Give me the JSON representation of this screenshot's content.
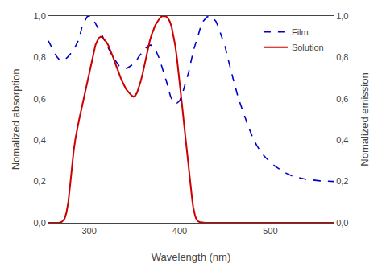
{
  "chart_data": {
    "type": "line",
    "xlabel": "Wavelength (nm)",
    "ylabel": "Nomalized absorption",
    "y2label": "Nomalized emission",
    "xlim": [
      255,
      570
    ],
    "ylim": [
      0.0,
      1.0
    ],
    "y2lim": [
      0.0,
      1.0
    ],
    "xticks": [
      300,
      400,
      500
    ],
    "yticks": [
      {
        "value": 0.0,
        "label": "0,0"
      },
      {
        "value": 0.2,
        "label": "0,2"
      },
      {
        "value": 0.4,
        "label": "0,4"
      },
      {
        "value": 0.6,
        "label": "0,6"
      },
      {
        "value": 0.8,
        "label": "0,8"
      },
      {
        "value": 1.0,
        "label": "1,0"
      }
    ],
    "y2ticks": [
      {
        "value": 0.0,
        "label": "0,0"
      },
      {
        "value": 0.2,
        "label": "0,2"
      },
      {
        "value": 0.4,
        "label": "0,4"
      },
      {
        "value": 0.6,
        "label": "0,6"
      },
      {
        "value": 0.8,
        "label": "0,8"
      },
      {
        "value": 1.0,
        "label": "1,0"
      }
    ],
    "grid": false,
    "legend": "upper right",
    "series": [
      {
        "name": "Film",
        "color": "#0000cc",
        "line_style": "dashed",
        "x": [
          255,
          258,
          261,
          264,
          267,
          270,
          273,
          276,
          279,
          282,
          285,
          288,
          290,
          292,
          295,
          298,
          300,
          302,
          305,
          307,
          310,
          312,
          315,
          318,
          320,
          323,
          325,
          328,
          330,
          333,
          335,
          338,
          340,
          342,
          345,
          348,
          350,
          353,
          355,
          358,
          360,
          363,
          365,
          368,
          370,
          373,
          375,
          378,
          380,
          383,
          386,
          388,
          390,
          393,
          396,
          400,
          403,
          406,
          410,
          413,
          416,
          420,
          423,
          426,
          430,
          433,
          436,
          440,
          443,
          446,
          450,
          453,
          456,
          460,
          465,
          470,
          475,
          480,
          485,
          490,
          495,
          500,
          505,
          510,
          515,
          520,
          525,
          530,
          535,
          540,
          545,
          550,
          555,
          560,
          565,
          570
        ],
        "values": [
          0.88,
          0.855,
          0.825,
          0.805,
          0.79,
          0.785,
          0.79,
          0.8,
          0.815,
          0.83,
          0.855,
          0.88,
          0.91,
          0.945,
          0.975,
          0.998,
          1.0,
          0.995,
          0.98,
          0.965,
          0.945,
          0.925,
          0.9,
          0.875,
          0.855,
          0.83,
          0.81,
          0.79,
          0.775,
          0.76,
          0.755,
          0.75,
          0.745,
          0.748,
          0.755,
          0.765,
          0.775,
          0.79,
          0.805,
          0.82,
          0.835,
          0.848,
          0.855,
          0.86,
          0.855,
          0.84,
          0.82,
          0.79,
          0.76,
          0.72,
          0.675,
          0.64,
          0.61,
          0.585,
          0.575,
          0.59,
          0.625,
          0.67,
          0.73,
          0.79,
          0.845,
          0.9,
          0.945,
          0.975,
          0.995,
          1.0,
          0.995,
          0.975,
          0.945,
          0.905,
          0.855,
          0.8,
          0.745,
          0.68,
          0.6,
          0.535,
          0.475,
          0.42,
          0.375,
          0.34,
          0.315,
          0.295,
          0.275,
          0.26,
          0.245,
          0.235,
          0.225,
          0.22,
          0.215,
          0.21,
          0.208,
          0.205,
          0.203,
          0.202,
          0.201,
          0.2
        ]
      },
      {
        "name": "Solution",
        "color": "#cc0000",
        "line_style": "solid",
        "x": [
          255,
          258,
          261,
          264,
          267,
          270,
          273,
          275,
          277,
          279,
          281,
          283,
          285,
          287,
          289,
          291,
          293,
          295,
          297,
          299,
          301,
          303,
          305,
          307,
          309,
          311,
          313,
          315,
          317,
          319,
          321,
          323,
          325,
          327,
          329,
          331,
          333,
          335,
          337,
          339,
          341,
          343,
          345,
          347,
          349,
          351,
          353,
          355,
          357,
          359,
          361,
          363,
          365,
          367,
          369,
          371,
          373,
          375,
          377,
          379,
          381,
          383,
          385,
          387,
          389,
          391,
          393,
          395,
          397,
          399,
          401,
          403,
          405,
          407,
          409,
          411,
          412,
          413,
          414,
          415,
          416,
          417,
          418,
          419,
          420,
          422,
          424,
          426,
          428,
          430,
          433,
          436,
          440,
          445,
          450,
          455,
          460,
          465,
          470,
          475,
          480,
          490,
          500,
          510,
          520,
          530,
          540,
          550,
          560,
          570
        ],
        "values": [
          0.0,
          0.0,
          0.0,
          0.0,
          0.0,
          0.005,
          0.02,
          0.05,
          0.1,
          0.18,
          0.27,
          0.35,
          0.41,
          0.46,
          0.5,
          0.54,
          0.58,
          0.62,
          0.66,
          0.7,
          0.74,
          0.78,
          0.82,
          0.86,
          0.88,
          0.895,
          0.9,
          0.895,
          0.885,
          0.875,
          0.86,
          0.84,
          0.82,
          0.795,
          0.77,
          0.745,
          0.72,
          0.7,
          0.68,
          0.66,
          0.645,
          0.635,
          0.625,
          0.615,
          0.61,
          0.615,
          0.63,
          0.655,
          0.685,
          0.72,
          0.76,
          0.805,
          0.845,
          0.88,
          0.91,
          0.935,
          0.955,
          0.97,
          0.985,
          0.995,
          1.0,
          1.0,
          0.998,
          0.99,
          0.975,
          0.95,
          0.91,
          0.86,
          0.795,
          0.72,
          0.64,
          0.555,
          0.47,
          0.385,
          0.305,
          0.235,
          0.19,
          0.145,
          0.105,
          0.075,
          0.052,
          0.035,
          0.022,
          0.013,
          0.008,
          0.004,
          0.002,
          0.001,
          0.0,
          0.0,
          0.0,
          0.0,
          0.0,
          0.0,
          0.0,
          0.0,
          0.0,
          0.0,
          0.0,
          0.0,
          0.0,
          0.0,
          0.0,
          0.0,
          0.0,
          0.0,
          0.0,
          0.0,
          0.0,
          0.0
        ]
      }
    ]
  }
}
